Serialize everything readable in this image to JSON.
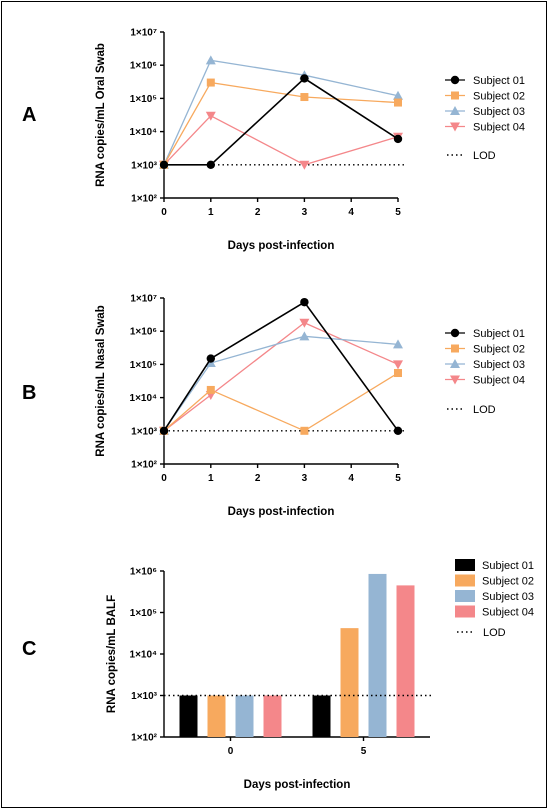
{
  "colors": {
    "subject_01": "#000000",
    "subject_02": "#F7A95E",
    "subject_03": "#95B5D3",
    "subject_04": "#F4878A",
    "lod": "#000000"
  },
  "legend_markers": [
    "circle",
    "square",
    "triangle-up",
    "triangle-down"
  ],
  "chart_data": [
    {
      "panel": "A",
      "type": "line",
      "ylabel": "RNA copies/mL Oral Swab",
      "xlabel": "Days post-infection",
      "x_ticks": [
        "0",
        "1",
        "2",
        "3",
        "4",
        "5"
      ],
      "y_ticks": [
        "1×10²",
        "1×10³",
        "1×10⁴",
        "1×10⁵",
        "1×10⁶",
        "1×10⁷"
      ],
      "y_scale": "log",
      "xlim": [
        0,
        5
      ],
      "ylim": [
        100,
        10000000
      ],
      "lod": 1000,
      "lod_label": "LOD",
      "series": [
        {
          "name": "Subject 01",
          "x": [
            0,
            1,
            3,
            5
          ],
          "values": [
            1000,
            1000,
            400000,
            6000
          ]
        },
        {
          "name": "Subject 02",
          "x": [
            0,
            1,
            3,
            5
          ],
          "values": [
            1000,
            300000,
            110000,
            75000
          ]
        },
        {
          "name": "Subject 03",
          "x": [
            0,
            1,
            3,
            5
          ],
          "values": [
            1000,
            1400000,
            500000,
            120000
          ]
        },
        {
          "name": "Subject 04",
          "x": [
            0,
            1,
            3,
            5
          ],
          "values": [
            1000,
            30000,
            1000,
            7000
          ]
        }
      ]
    },
    {
      "panel": "B",
      "type": "line",
      "ylabel": "RNA copies/mL Nasal Swab",
      "xlabel": "Days post-infection",
      "x_ticks": [
        "0",
        "1",
        "2",
        "3",
        "4",
        "5"
      ],
      "y_ticks": [
        "1×10²",
        "1×10³",
        "1×10⁴",
        "1×10⁵",
        "1×10⁶",
        "1×10⁷"
      ],
      "y_scale": "log",
      "xlim": [
        0,
        5
      ],
      "ylim": [
        100,
        10000000
      ],
      "lod": 1000,
      "lod_label": "LOD",
      "series": [
        {
          "name": "Subject 01",
          "x": [
            0,
            1,
            3,
            5
          ],
          "values": [
            1000,
            150000,
            7500000,
            1000
          ]
        },
        {
          "name": "Subject 02",
          "x": [
            0,
            1,
            3,
            5
          ],
          "values": [
            1000,
            17000,
            1000,
            55000
          ]
        },
        {
          "name": "Subject 03",
          "x": [
            0,
            1,
            3,
            5
          ],
          "values": [
            1000,
            110000,
            700000,
            400000
          ]
        },
        {
          "name": "Subject 04",
          "x": [
            0,
            1,
            3,
            5
          ],
          "values": [
            1000,
            12000,
            1800000,
            100000
          ]
        }
      ]
    },
    {
      "panel": "C",
      "type": "bar",
      "ylabel": "RNA copies/mL BALF",
      "xlabel": "Days post-infection",
      "categories": [
        "0",
        "5"
      ],
      "y_ticks": [
        "1×10²",
        "1×10³",
        "1×10⁴",
        "1×10⁵",
        "1×10⁶"
      ],
      "y_scale": "log",
      "ylim": [
        100,
        1000000
      ],
      "lod": 1000,
      "lod_label": "LOD",
      "series": [
        {
          "name": "Subject 01",
          "values": [
            1000,
            1000
          ]
        },
        {
          "name": "Subject 02",
          "values": [
            1000,
            42000
          ]
        },
        {
          "name": "Subject 03",
          "values": [
            1000,
            850000
          ]
        },
        {
          "name": "Subject 04",
          "values": [
            1000,
            450000
          ]
        }
      ]
    }
  ]
}
